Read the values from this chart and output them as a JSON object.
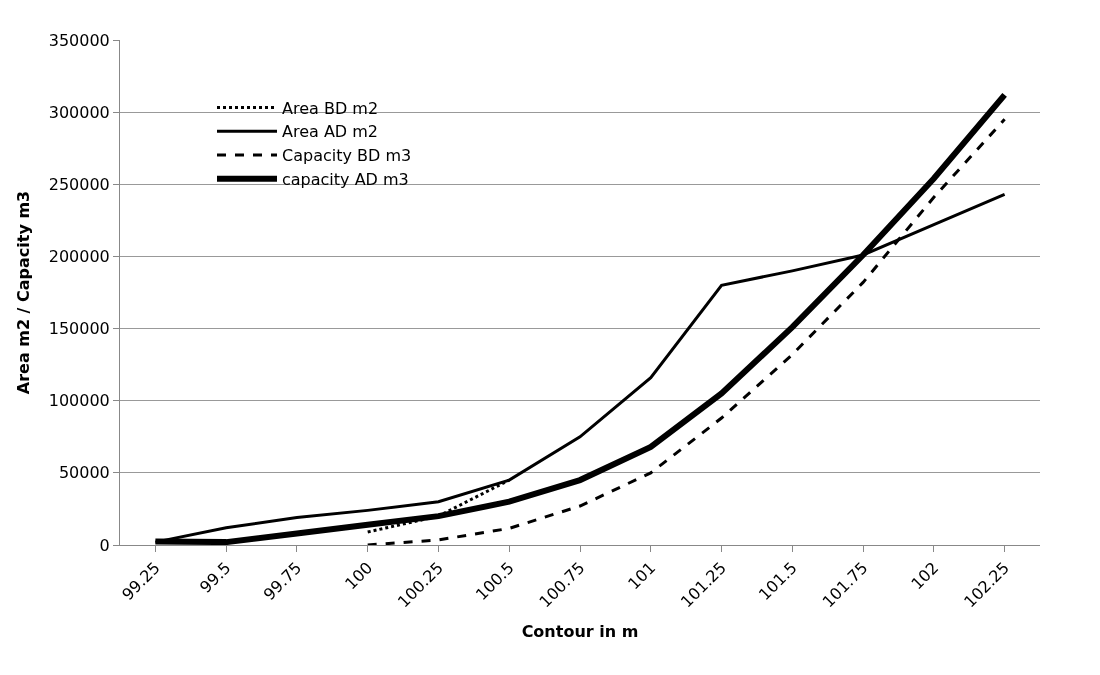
{
  "chart_data": {
    "type": "line",
    "xlabel": "Contour in m",
    "ylabel": "Area m2 / Capacity m3",
    "categories": [
      "99.25",
      "99.5",
      "99.75",
      "100",
      "100.25",
      "100.5",
      "100.75",
      "101",
      "101.25",
      "101.5",
      "101.75",
      "102",
      "102.25"
    ],
    "series": [
      {
        "name": "Area BD m2",
        "color": "#000000",
        "line_style": "dotted",
        "values": [
          null,
          null,
          null,
          9000,
          20000,
          45000,
          null,
          null,
          null,
          null,
          null,
          null,
          null
        ]
      },
      {
        "name": "Area AD m2",
        "color": "#000000",
        "line_style": "solid",
        "values": [
          2000,
          12000,
          19000,
          24000,
          30000,
          45000,
          75000,
          116000,
          180000,
          190000,
          201000,
          222000,
          243000
        ]
      },
      {
        "name": "Capacity BD m3",
        "color": "#000000",
        "line_style": "dashed",
        "values": [
          null,
          null,
          null,
          0,
          3500,
          11500,
          27000,
          50000,
          88000,
          132000,
          182000,
          241000,
          295000
        ]
      },
      {
        "name": "capacity AD m3",
        "color": "#000000",
        "line_style": "solid",
        "values": [
          2500,
          2000,
          8000,
          14000,
          20000,
          30000,
          45000,
          68000,
          105000,
          151000,
          201000,
          254000,
          312000
        ]
      }
    ],
    "ylim": [
      0,
      350000
    ],
    "yticks": [
      0,
      50000,
      100000,
      150000,
      200000,
      250000,
      300000,
      350000
    ],
    "grid": "y",
    "legend": "top left",
    "marker": "none"
  }
}
